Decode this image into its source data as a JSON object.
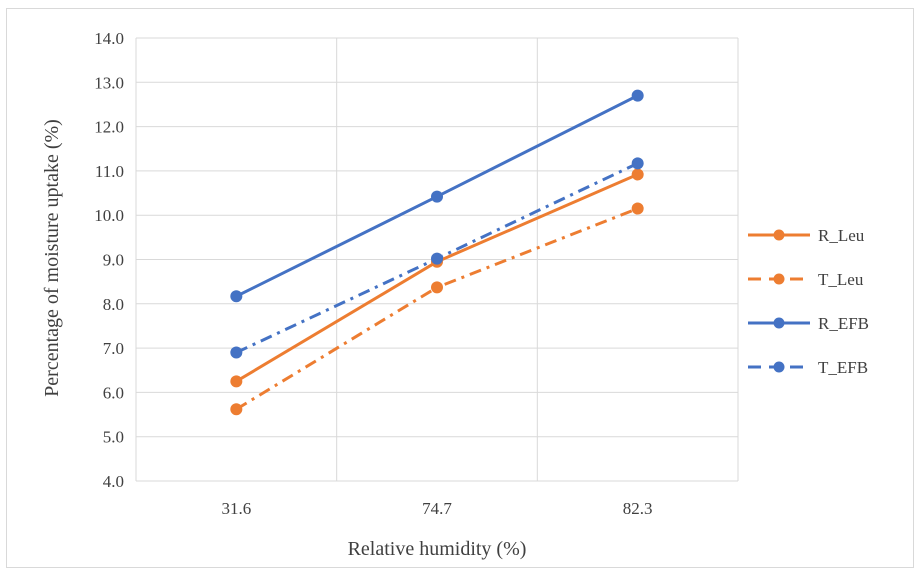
{
  "chart_data": {
    "type": "line",
    "title": "",
    "xlabel": "Relative humidity (%)",
    "ylabel": "Percentage of moisture uptake (%)",
    "categories": [
      "31.6",
      "74.7",
      "82.3"
    ],
    "ylim": [
      4.0,
      14.0
    ],
    "ytick_step": 1.0,
    "yticks": [
      "4.0",
      "5.0",
      "6.0",
      "7.0",
      "8.0",
      "9.0",
      "10.0",
      "11.0",
      "12.0",
      "13.0",
      "14.0"
    ],
    "grid": "both",
    "legend_position": "right",
    "series": [
      {
        "name": "R_Leu",
        "values": [
          6.25,
          8.95,
          10.92
        ],
        "color": "#ED7D31",
        "dash": "solid"
      },
      {
        "name": "T_Leu",
        "values": [
          5.62,
          8.37,
          10.15
        ],
        "color": "#ED7D31",
        "dash": "dashdot"
      },
      {
        "name": "R_EFB",
        "values": [
          8.17,
          10.42,
          12.7
        ],
        "color": "#4472C4",
        "dash": "solid"
      },
      {
        "name": "T_EFB",
        "values": [
          6.9,
          9.02,
          11.17
        ],
        "color": "#4472C4",
        "dash": "dashdot"
      }
    ]
  }
}
